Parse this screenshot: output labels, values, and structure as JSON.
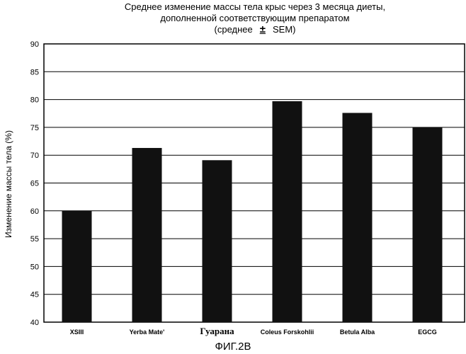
{
  "chart_data": {
    "type": "bar",
    "title_lines": [
      "Среднее изменение массы тела крыс через 3 месяца диеты,",
      "дополненной соответствующим препаратом"
    ],
    "subtitle": {
      "prefix": "(среднее",
      "symbol": "±",
      "suffix": "SEM)"
    },
    "ylabel": "Изменение массы тела (%)",
    "xlabel": "",
    "categories": [
      "XSIII",
      "Yerba Mate'",
      "Гуарана",
      "Coleus Forskohlii",
      "Betula Alba",
      "EGCG"
    ],
    "values": [
      60.0,
      71.3,
      69.1,
      79.7,
      77.6,
      75.0
    ],
    "ylim": [
      40,
      90
    ],
    "yticks": [
      40,
      45,
      50,
      55,
      60,
      65,
      70,
      75,
      80,
      85,
      90
    ],
    "grid": "horizontal",
    "colors": {
      "bar": "#111111",
      "grid": "#000000",
      "axis": "#000000"
    },
    "figure_label": "ФИГ.2В"
  }
}
